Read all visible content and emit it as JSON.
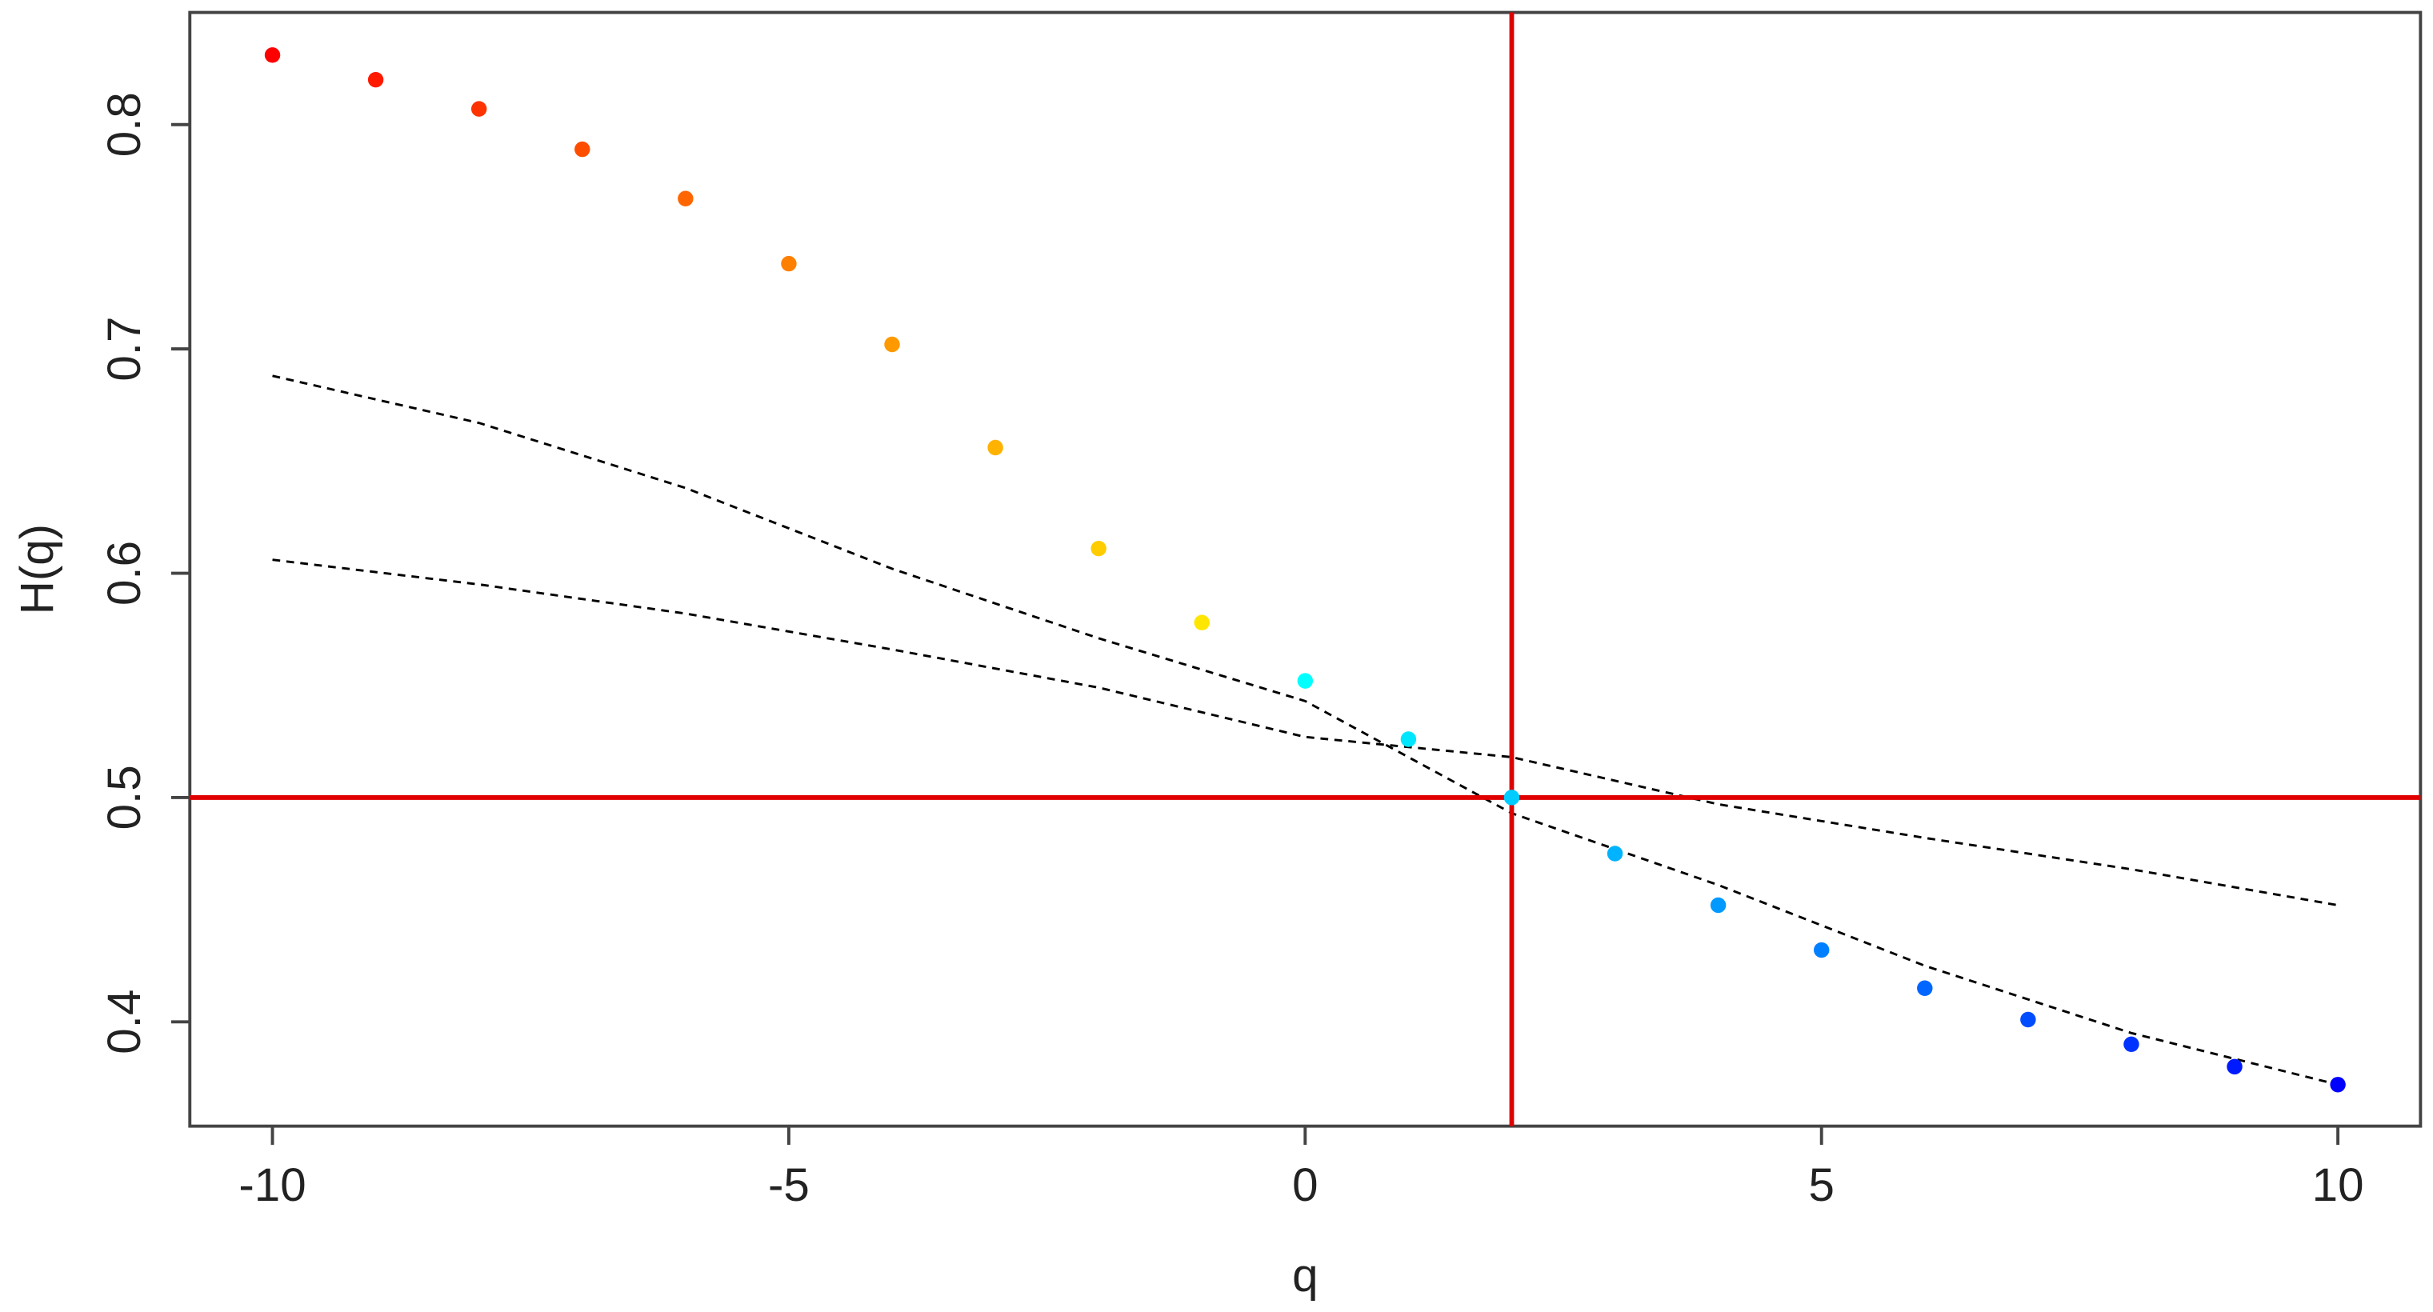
{
  "chart_data": {
    "type": "scatter",
    "xlabel": "q",
    "ylabel": "H(q)",
    "x": [
      -10,
      -9,
      -8,
      -7,
      -6,
      -5,
      -4,
      -3,
      -2,
      -1,
      0,
      1,
      2,
      3,
      4,
      5,
      6,
      7,
      8,
      9,
      10
    ],
    "values": [
      0.831,
      0.82,
      0.807,
      0.789,
      0.767,
      0.738,
      0.702,
      0.656,
      0.611,
      0.578,
      0.552,
      0.526,
      0.5,
      0.475,
      0.452,
      0.432,
      0.415,
      0.401,
      0.39,
      0.38,
      0.372
    ],
    "colors": [
      "#ff0000",
      "#ff1a00",
      "#ff3300",
      "#ff4d00",
      "#ff6600",
      "#ff8000",
      "#ff9900",
      "#ffb300",
      "#ffcc00",
      "#ffe600",
      "#00ffff",
      "#00e6ff",
      "#00ccff",
      "#00b3ff",
      "#0099ff",
      "#0080ff",
      "#0066ff",
      "#004dff",
      "#0033ff",
      "#001aff",
      "#0000ff"
    ],
    "curve_x": [
      -10,
      -8,
      -6,
      -4,
      -2,
      0,
      2,
      4,
      6,
      8,
      10
    ],
    "curves": [
      {
        "color": "#000000",
        "values": [
          0.688,
          0.667,
          0.638,
          0.602,
          0.571,
          0.543,
          0.493,
          0.461,
          0.425,
          0.395,
          0.372
        ]
      },
      {
        "color": "#000000",
        "values": [
          0.606,
          0.595,
          0.582,
          0.566,
          0.549,
          0.527,
          0.518,
          0.497,
          0.482,
          0.468,
          0.452
        ]
      }
    ],
    "vline": 2,
    "hline": 0.5,
    "ref_color": "#e00000",
    "xlim": [
      -10.8,
      10.8
    ],
    "ylim": [
      0.3535,
      0.85
    ],
    "xticks": [
      -10,
      -5,
      0,
      5,
      10
    ],
    "yticks": [
      0.4,
      0.5,
      0.6,
      0.7,
      0.8
    ]
  }
}
